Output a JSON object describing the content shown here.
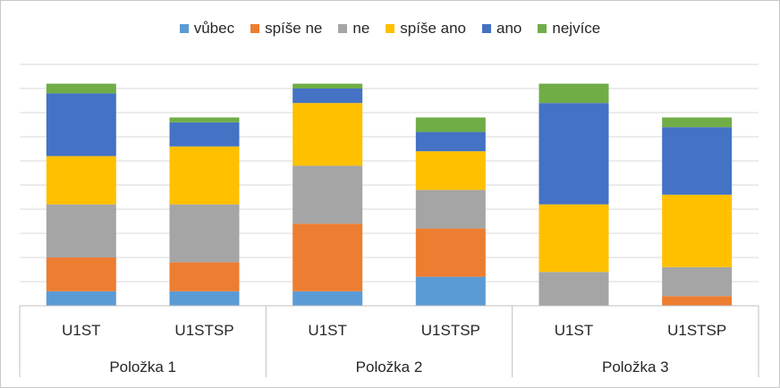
{
  "chart_data": {
    "type": "bar",
    "stacked": true,
    "orientation": "vertical",
    "groups": [
      "Položka 1",
      "Položka 2",
      "Položka 3"
    ],
    "categories": [
      "U1ST",
      "U1STSP",
      "U1ST",
      "U1STSP",
      "U1ST",
      "U1STSP"
    ],
    "category_groups": [
      0,
      0,
      1,
      1,
      2,
      2
    ],
    "series": [
      {
        "name": "vůbec",
        "color": "#5b9bd5",
        "values": [
          6,
          6,
          6,
          12,
          0,
          0
        ]
      },
      {
        "name": "spíše ne",
        "color": "#ed7d31",
        "values": [
          14,
          12,
          28,
          20,
          0,
          4
        ]
      },
      {
        "name": "ne",
        "color": "#a5a5a5",
        "values": [
          22,
          24,
          24,
          16,
          14,
          12
        ]
      },
      {
        "name": "spíše ano",
        "color": "#ffc000",
        "values": [
          20,
          24,
          26,
          16,
          28,
          30
        ]
      },
      {
        "name": "ano",
        "color": "#4472c4",
        "values": [
          26,
          10,
          6,
          8,
          42,
          28
        ]
      },
      {
        "name": "nejvíce",
        "color": "#70ad47",
        "values": [
          4,
          2,
          2,
          6,
          8,
          4
        ]
      }
    ],
    "ylim": [
      0,
      100
    ],
    "y_ticks_shown": false,
    "grid": true,
    "legend_position": "top"
  }
}
